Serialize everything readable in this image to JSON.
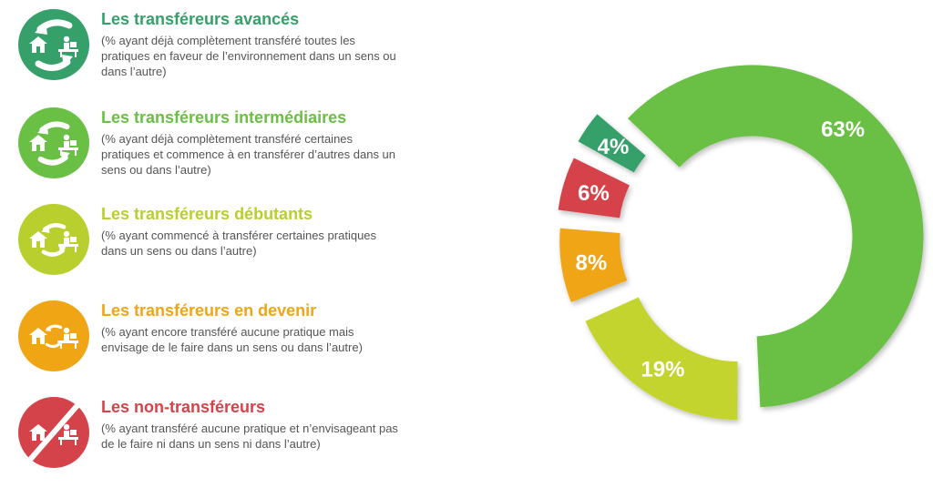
{
  "legend": {
    "items": [
      {
        "title": "Les transféreurs avancés",
        "desc": "(% ayant déjà complètement transféré toutes les pratiques en faveur de l’environnement dans un sens ou dans l’autre)",
        "color": "#35a06a"
      },
      {
        "title": "Les transféreurs intermédiaires",
        "desc": "(% ayant déjà complètement transféré certaines pratiques et commence à en transférer d’autres dans un sens ou dans l’autre)",
        "color": "#6abf45"
      },
      {
        "title": "Les transféreurs débutants",
        "desc": "(% ayant commencé à transférer certaines pratiques dans un sens ou dans l’autre)",
        "color": "#b8cf2e"
      },
      {
        "title": "Les transféreurs en devenir",
        "desc": "(% ayant encore transféré aucune pratique mais envisage de le faire dans un sens ou dans l’autre)",
        "color": "#f0a515"
      },
      {
        "title": "Les non-transféreurs",
        "desc": "(% ayant transféré aucune pratique et n’envisageant pas de le faire ni dans un sens ni dans l’autre)",
        "color": "#d5434a"
      }
    ],
    "icons": [
      "house-icon",
      "desk-worker-icon",
      "transfer-arrows-icon"
    ]
  },
  "chart_data": {
    "type": "pie",
    "variant": "exploded-donut",
    "categories": [
      "Les transféreurs intermédiaires",
      "Les transféreurs débutants",
      "Les transféreurs en devenir",
      "Les non-transféreurs",
      "Les transféreurs avancés"
    ],
    "values": [
      63,
      19,
      8,
      6,
      4
    ],
    "labels": [
      "63%",
      "19%",
      "8%",
      "6%",
      "4%"
    ],
    "colors": [
      "#6abf45",
      "#c3d42e",
      "#f0a515",
      "#d5434a",
      "#35a06a"
    ],
    "title": ""
  }
}
